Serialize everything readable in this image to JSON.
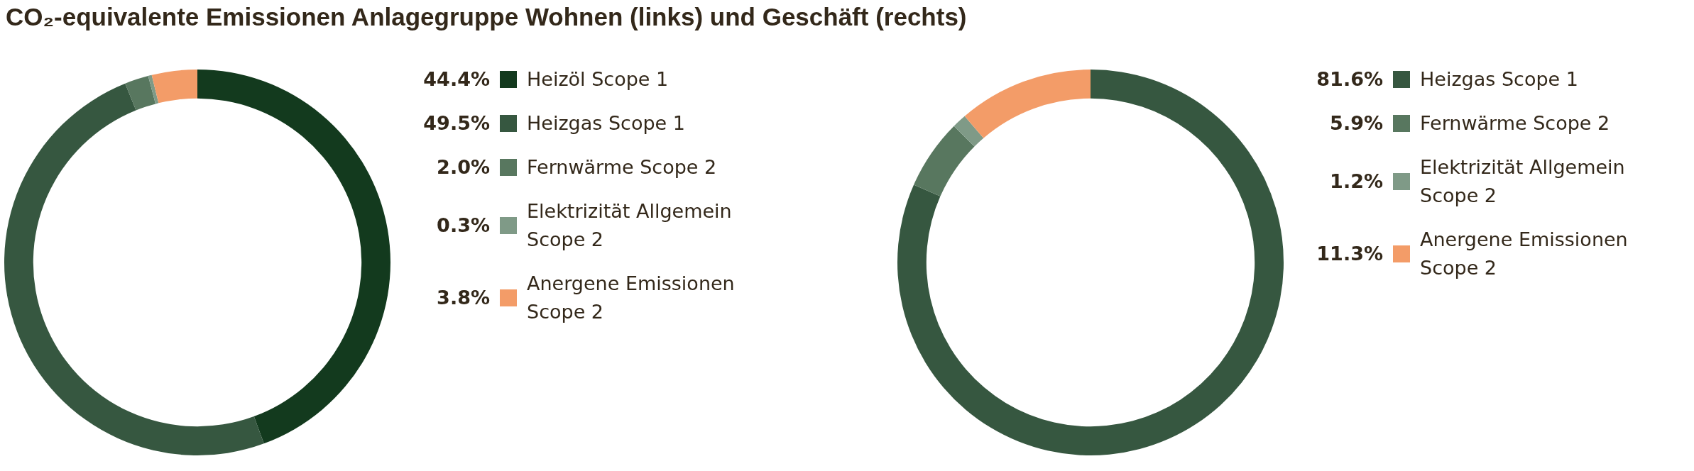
{
  "chart_data": [
    {
      "type": "donut",
      "title": "CO₂-equivalente Emissionen Anlagegruppe Wohnen (links) und Geschäft (rechts)",
      "categories": [
        "Heizöl Scope 1",
        "Heizgas Scope 1",
        "Fernwärme Scope 2",
        "Elektrizität Allgemein Scope 2",
        "Anergene Emissionen Scope 2"
      ],
      "values": [
        44.4,
        49.5,
        2.0,
        0.3,
        3.8
      ],
      "value_labels": [
        "44.4%",
        "49.5%",
        "2.0%",
        "0.3%",
        "3.8%"
      ],
      "colors": [
        "#133a1e",
        "#365740",
        "#58775f",
        "#7f9a87",
        "#f39c68"
      ],
      "legend": "right"
    },
    {
      "type": "donut",
      "categories": [
        "Heizgas Scope 1",
        "Fernwärme Scope 2",
        "Elektrizität Allgemein Scope 2",
        "Anergene Emissionen Scope 2"
      ],
      "values": [
        81.6,
        5.9,
        1.2,
        11.3
      ],
      "value_labels": [
        "81.6%",
        "5.9%",
        "1.2%",
        "11.3%"
      ],
      "colors": [
        "#365740",
        "#58775f",
        "#7f9a87",
        "#f39c68"
      ],
      "legend": "right"
    }
  ]
}
